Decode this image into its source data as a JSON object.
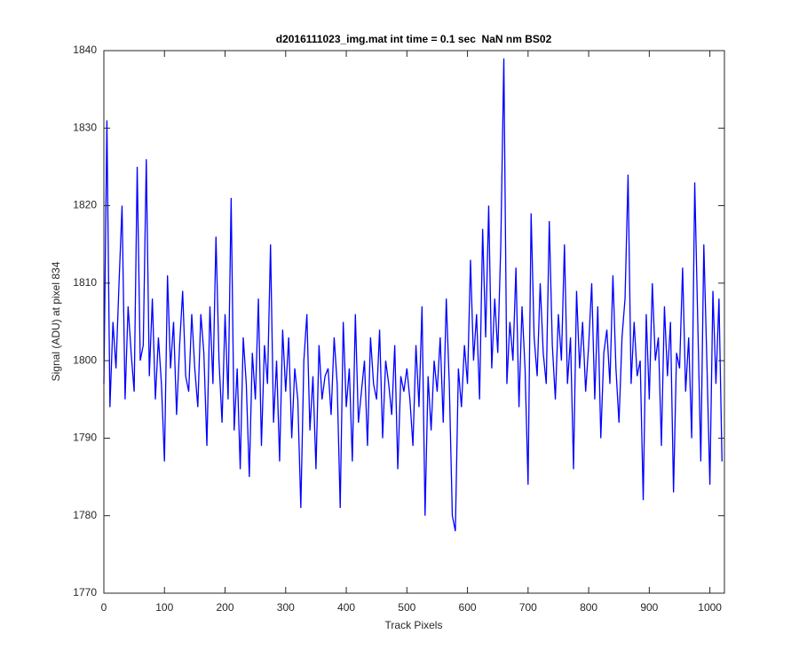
{
  "chart_data": {
    "type": "line",
    "title": "d2016111023_img.mat int time = 0.1 sec  NaN nm BS02",
    "x_label": "Track Pixels",
    "y_label": "Signal (ADU) at pixel 834",
    "xlim": [
      0,
      1024
    ],
    "xticks": [
      0,
      100,
      200,
      300,
      400,
      500,
      600,
      700,
      800,
      900,
      1000
    ],
    "ylim": [
      1770,
      1840
    ],
    "yticks": [
      1770,
      1780,
      1790,
      1800,
      1810,
      1820,
      1830,
      1840
    ],
    "grid": false,
    "x": [
      0,
      5,
      10,
      15,
      20,
      25,
      30,
      35,
      40,
      45,
      50,
      55,
      60,
      65,
      70,
      75,
      80,
      85,
      90,
      95,
      100,
      105,
      110,
      115,
      120,
      125,
      130,
      135,
      140,
      145,
      150,
      155,
      160,
      165,
      170,
      175,
      180,
      185,
      190,
      195,
      200,
      205,
      210,
      215,
      220,
      225,
      230,
      235,
      240,
      245,
      250,
      255,
      260,
      265,
      270,
      275,
      280,
      285,
      290,
      295,
      300,
      305,
      310,
      315,
      320,
      325,
      330,
      335,
      340,
      345,
      350,
      355,
      360,
      365,
      370,
      375,
      380,
      385,
      390,
      395,
      400,
      405,
      410,
      415,
      420,
      425,
      430,
      435,
      440,
      445,
      450,
      455,
      460,
      465,
      470,
      475,
      480,
      485,
      490,
      495,
      500,
      505,
      510,
      515,
      520,
      525,
      530,
      535,
      540,
      545,
      550,
      555,
      560,
      565,
      570,
      575,
      580,
      585,
      590,
      595,
      600,
      605,
      610,
      615,
      620,
      625,
      630,
      635,
      640,
      645,
      650,
      655,
      660,
      665,
      670,
      675,
      680,
      685,
      690,
      695,
      700,
      705,
      710,
      715,
      720,
      725,
      730,
      735,
      740,
      745,
      750,
      755,
      760,
      765,
      770,
      775,
      780,
      785,
      790,
      795,
      800,
      805,
      810,
      815,
      820,
      825,
      830,
      835,
      840,
      845,
      850,
      855,
      860,
      865,
      870,
      875,
      880,
      885,
      890,
      895,
      900,
      905,
      910,
      915,
      920,
      925,
      930,
      935,
      940,
      945,
      950,
      955,
      960,
      965,
      970,
      975,
      980,
      985,
      990,
      995,
      1000,
      1005,
      1010,
      1015,
      1020
    ],
    "series": [
      {
        "color": "#0000ff",
        "values": [
          1797,
          1831,
          1794,
          1805,
          1799,
          1810,
          1820,
          1795,
          1807,
          1801,
          1796,
          1825,
          1800,
          1802,
          1826,
          1798,
          1808,
          1795,
          1803,
          1797,
          1787,
          1811,
          1799,
          1805,
          1793,
          1802,
          1809,
          1798,
          1796,
          1806,
          1799,
          1794,
          1806,
          1801,
          1789,
          1807,
          1797,
          1816,
          1800,
          1792,
          1806,
          1795,
          1821,
          1791,
          1799,
          1786,
          1803,
          1797,
          1785,
          1801,
          1795,
          1808,
          1789,
          1802,
          1797,
          1815,
          1792,
          1800,
          1787,
          1804,
          1796,
          1803,
          1790,
          1799,
          1795,
          1781,
          1800,
          1806,
          1791,
          1798,
          1786,
          1802,
          1795,
          1798,
          1799,
          1793,
          1803,
          1797,
          1781,
          1805,
          1794,
          1799,
          1787,
          1806,
          1792,
          1796,
          1800,
          1789,
          1803,
          1797,
          1795,
          1804,
          1790,
          1800,
          1797,
          1793,
          1802,
          1786,
          1798,
          1796,
          1799,
          1795,
          1789,
          1802,
          1794,
          1807,
          1780,
          1798,
          1791,
          1800,
          1796,
          1803,
          1792,
          1808,
          1797,
          1780,
          1778,
          1799,
          1794,
          1802,
          1797,
          1813,
          1800,
          1806,
          1795,
          1817,
          1803,
          1820,
          1799,
          1808,
          1801,
          1815,
          1839,
          1797,
          1805,
          1800,
          1812,
          1794,
          1807,
          1799,
          1784,
          1819,
          1803,
          1798,
          1810,
          1801,
          1797,
          1818,
          1802,
          1795,
          1806,
          1800,
          1815,
          1797,
          1803,
          1786,
          1809,
          1799,
          1805,
          1796,
          1802,
          1810,
          1795,
          1807,
          1790,
          1801,
          1804,
          1797,
          1811,
          1799,
          1792,
          1803,
          1808,
          1824,
          1797,
          1805,
          1798,
          1800,
          1782,
          1806,
          1795,
          1810,
          1800,
          1803,
          1789,
          1807,
          1798,
          1805,
          1783,
          1801,
          1799,
          1812,
          1796,
          1803,
          1790,
          1823,
          1805,
          1787,
          1815,
          1800,
          1784,
          1809,
          1797,
          1808,
          1787
        ]
      }
    ]
  }
}
